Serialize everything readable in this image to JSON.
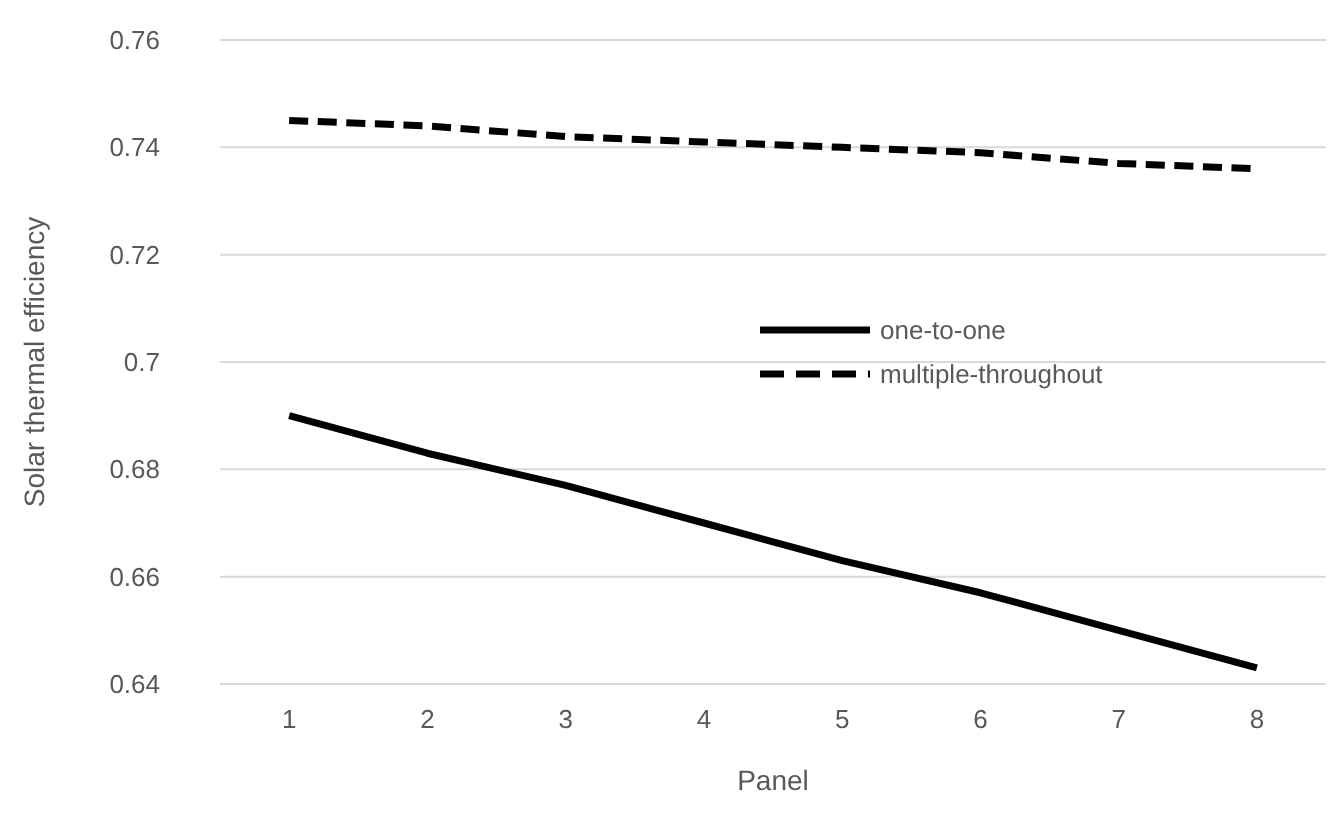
{
  "chart_data": {
    "type": "line",
    "xlabel": "Panel",
    "ylabel": "Solar thermal efficiency",
    "categories": [
      "1",
      "2",
      "3",
      "4",
      "5",
      "6",
      "7",
      "8"
    ],
    "series": [
      {
        "name": "one-to-one",
        "color": "#000000",
        "line_style": "solid",
        "values": [
          0.69,
          0.683,
          0.677,
          0.67,
          0.663,
          0.657,
          0.65,
          0.643
        ]
      },
      {
        "name": "multiple-throughout",
        "color": "#000000",
        "line_style": "dashed",
        "values": [
          0.745,
          0.744,
          0.742,
          0.741,
          0.74,
          0.739,
          0.737,
          0.736
        ]
      }
    ],
    "ylim": [
      0.64,
      0.76
    ],
    "yticks": [
      0.64,
      0.66,
      0.68,
      0.7,
      0.72,
      0.74,
      0.76
    ],
    "grid": "y",
    "legend": "right",
    "marker": "none"
  }
}
